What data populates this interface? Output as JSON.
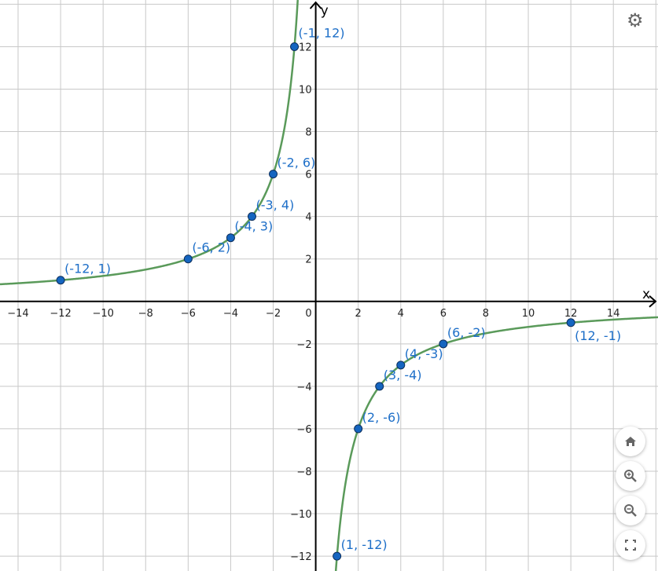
{
  "chart_data": {
    "type": "line",
    "xlabel": "x",
    "ylabel": "y",
    "xlim": [
      -14.85,
      16.1
    ],
    "ylim": [
      -12.7,
      14.2
    ],
    "grid": true,
    "grid_step": 2,
    "tick_step": 2,
    "x_ticks": [
      -14,
      -12,
      -10,
      -8,
      -6,
      -4,
      -2,
      2,
      4,
      6,
      8,
      10,
      12,
      14
    ],
    "y_ticks": [
      -12,
      -10,
      -8,
      -6,
      -4,
      -2,
      2,
      4,
      6,
      8,
      10,
      12
    ],
    "origin_label": "0",
    "curve": {
      "function": "y = -12/x",
      "color": "#5a9a5a"
    },
    "point_color": "#1565c0",
    "label_color": "#1e6fc8",
    "points": [
      {
        "x": -1,
        "y": 12,
        "label": "(-1, 12)"
      },
      {
        "x": -2,
        "y": 6,
        "label": "(-2, 6)"
      },
      {
        "x": -3,
        "y": 4,
        "label": "(-3, 4)"
      },
      {
        "x": -4,
        "y": 3,
        "label": "(-4, 3)"
      },
      {
        "x": -6,
        "y": 2,
        "label": "(-6, 2)"
      },
      {
        "x": -12,
        "y": 1,
        "label": "(-12, 1)"
      },
      {
        "x": 1,
        "y": -12,
        "label": "(1, -12)"
      },
      {
        "x": 2,
        "y": -6,
        "label": "(2, -6)"
      },
      {
        "x": 3,
        "y": -4,
        "label": "(3, -4)"
      },
      {
        "x": 4,
        "y": -3,
        "label": "(4, -3)"
      },
      {
        "x": 6,
        "y": -2,
        "label": "(6, -2)"
      },
      {
        "x": 12,
        "y": -1,
        "label": "(12, -1)"
      }
    ]
  },
  "controls": {
    "settings": "gear-icon",
    "home": "home-icon",
    "zoom_in": "zoom-in-icon",
    "zoom_out": "zoom-out-icon",
    "fullscreen": "fullscreen-icon"
  }
}
